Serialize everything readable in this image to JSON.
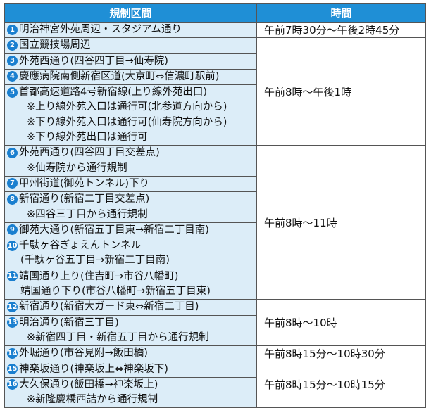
{
  "table": {
    "headers": [
      "規制区間",
      "時間"
    ],
    "groups": [
      {
        "time": "午前7時30分～午後2時45分",
        "items": [
          {
            "number": "1",
            "lines": [
              "明治神宮外苑周辺・スタジアム通り"
            ]
          }
        ]
      },
      {
        "time": "午前8時～午後1時",
        "items": [
          {
            "number": "2",
            "lines": [
              "国立競技場周辺"
            ]
          },
          {
            "number": "3",
            "lines": [
              "外苑西通り(四谷四丁目→仙寿院)"
            ]
          },
          {
            "number": "4",
            "lines": [
              "慶應病院南側新宿区道(大京町⇔信濃町駅前)"
            ]
          },
          {
            "number": "5",
            "lines": [
              "首都高速道路4号新宿線(上り線外苑出口)",
              "※上り線外苑入口は通行可(北参道方向から)",
              "※下り線外苑入口は通行可(仙寿院方向から)",
              "※下り線外苑出口は通行可"
            ]
          }
        ]
      },
      {
        "time": "午前8時～11時",
        "items": [
          {
            "number": "6",
            "lines": [
              "外苑西通り(四谷四丁目交差点)",
              "※仙寿院から通行規制"
            ]
          },
          {
            "number": "7",
            "lines": [
              "甲州街道(御苑トンネル)下り"
            ]
          },
          {
            "number": "8",
            "lines": [
              "新宿通り(新宿二丁目交差点)",
              "※四谷三丁目から通行規制"
            ]
          },
          {
            "number": "9",
            "lines": [
              "御苑大通り(新宿五丁目東→新宿二丁目南)"
            ]
          },
          {
            "number": "10",
            "lines": [
              "千駄ヶ谷ぎょえんトンネル",
              "(千駄ヶ谷五丁目→新宿二丁目南)"
            ]
          },
          {
            "number": "11",
            "lines": [
              "靖国通り上り(住吉町→市谷八幡町)",
              "靖国通り下り(市谷八幡町→新宿五丁目東)"
            ]
          }
        ]
      },
      {
        "time": "午前8時～10時",
        "items": [
          {
            "number": "12",
            "lines": [
              "新宿通り(新宿大ガード東⇔新宿二丁目)"
            ]
          },
          {
            "number": "13",
            "lines": [
              "明治通り(新宿三丁目)",
              "※新宿四丁目・新宿五丁目から通行規制"
            ]
          }
        ]
      },
      {
        "time": "午前8時15分～10時30分",
        "items": [
          {
            "number": "14",
            "lines": [
              "外堀通り(市谷見附→飯田橋)"
            ]
          }
        ]
      },
      {
        "time": "午前8時15分～10時15分",
        "items": [
          {
            "number": "15",
            "lines": [
              "神楽坂通り(神楽坂上⇔神楽坂下)"
            ]
          },
          {
            "number": "16",
            "lines": [
              "大久保通り(飯田橋→神楽坂上)",
              "※新隆慶橋西詰から通行規制"
            ]
          }
        ]
      }
    ]
  }
}
